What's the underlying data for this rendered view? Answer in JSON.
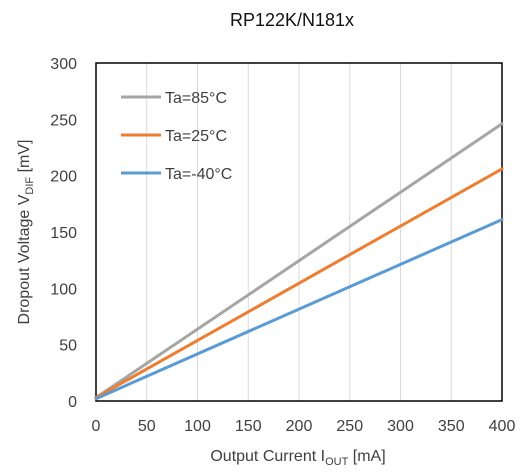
{
  "chart_data": {
    "type": "line",
    "title": "RP122K/N181x",
    "xlabel": {
      "main": "Output Current I",
      "sub": "OUT",
      "unit": " [mA]"
    },
    "ylabel": {
      "main": "Dropout Voltage V",
      "sub": "DIF",
      "unit": " [mV]"
    },
    "xlim": [
      0,
      400
    ],
    "ylim": [
      0,
      300
    ],
    "xticks": [
      0,
      50,
      100,
      150,
      200,
      250,
      300,
      350,
      400
    ],
    "yticks": [
      0,
      50,
      100,
      150,
      200,
      250,
      300
    ],
    "grid": "vertical",
    "legend_position": "top-left",
    "series": [
      {
        "name": "Ta=85°C",
        "color": "#a5a5a5",
        "x": [
          0,
          400
        ],
        "y": [
          3,
          246
        ]
      },
      {
        "name": "Ta=25°C",
        "color": "#ed7d31",
        "x": [
          0,
          400
        ],
        "y": [
          3,
          206
        ]
      },
      {
        "name": "Ta=-40°C",
        "color": "#5b9bd5",
        "x": [
          0,
          400
        ],
        "y": [
          2,
          161
        ]
      }
    ]
  }
}
